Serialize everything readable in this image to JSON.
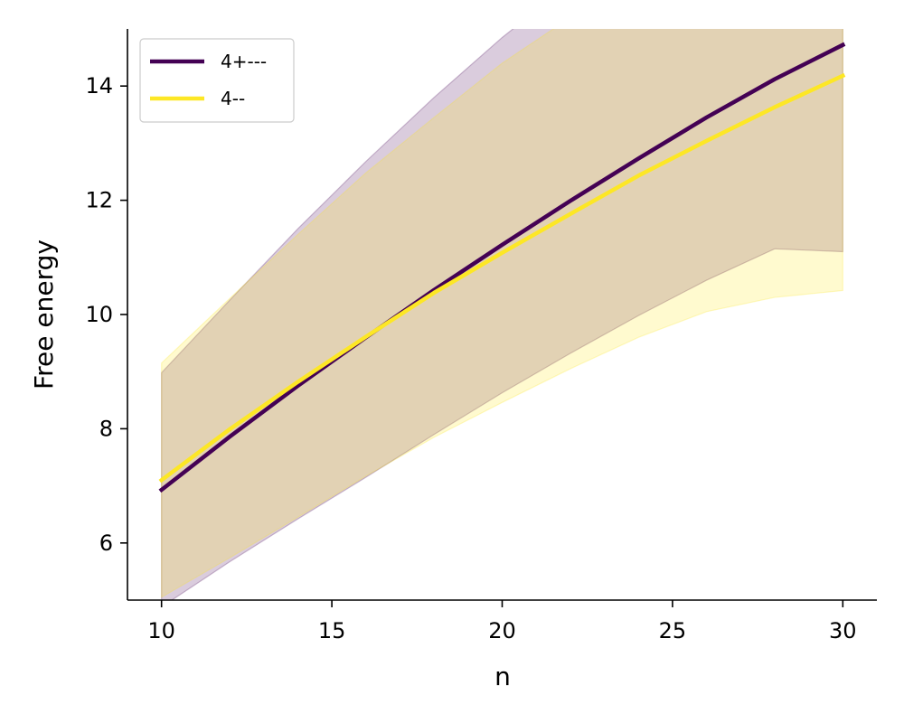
{
  "chart_data": {
    "type": "line",
    "title": "",
    "xlabel": "n",
    "ylabel": "Free energy",
    "xlim": [
      9,
      31
    ],
    "ylim": [
      5,
      15
    ],
    "xticks": [
      10,
      15,
      20,
      25,
      30
    ],
    "yticks": [
      6,
      8,
      10,
      12,
      14
    ],
    "grid": false,
    "legend": {
      "position": "top-left"
    },
    "x": [
      10,
      12,
      14,
      16,
      18,
      20,
      22,
      24,
      26,
      28,
      30
    ],
    "series": [
      {
        "name": "4+---",
        "color": "#440154",
        "values": [
          6.93,
          7.86,
          8.75,
          9.6,
          10.43,
          11.22,
          11.99,
          12.73,
          13.45,
          14.12,
          14.72
        ],
        "band_upper": [
          8.98,
          10.25,
          11.5,
          12.68,
          13.8,
          14.85,
          15.8,
          16.6,
          17.3,
          17.9,
          18.4
        ],
        "band_lower": [
          4.88,
          5.67,
          6.42,
          7.15,
          7.9,
          8.63,
          9.32,
          9.98,
          10.6,
          11.15,
          11.1
        ]
      },
      {
        "name": "4--",
        "color": "#fde725",
        "values": [
          7.1,
          7.99,
          8.82,
          9.61,
          10.38,
          11.08,
          11.76,
          12.43,
          13.04,
          13.63,
          14.18
        ],
        "band_upper": [
          9.15,
          10.28,
          11.4,
          12.48,
          13.45,
          14.4,
          15.2,
          15.8,
          16.3,
          16.7,
          17.0
        ],
        "band_lower": [
          5.05,
          5.74,
          6.45,
          7.17,
          7.85,
          8.46,
          9.05,
          9.6,
          10.05,
          10.3,
          10.42
        ]
      }
    ]
  }
}
